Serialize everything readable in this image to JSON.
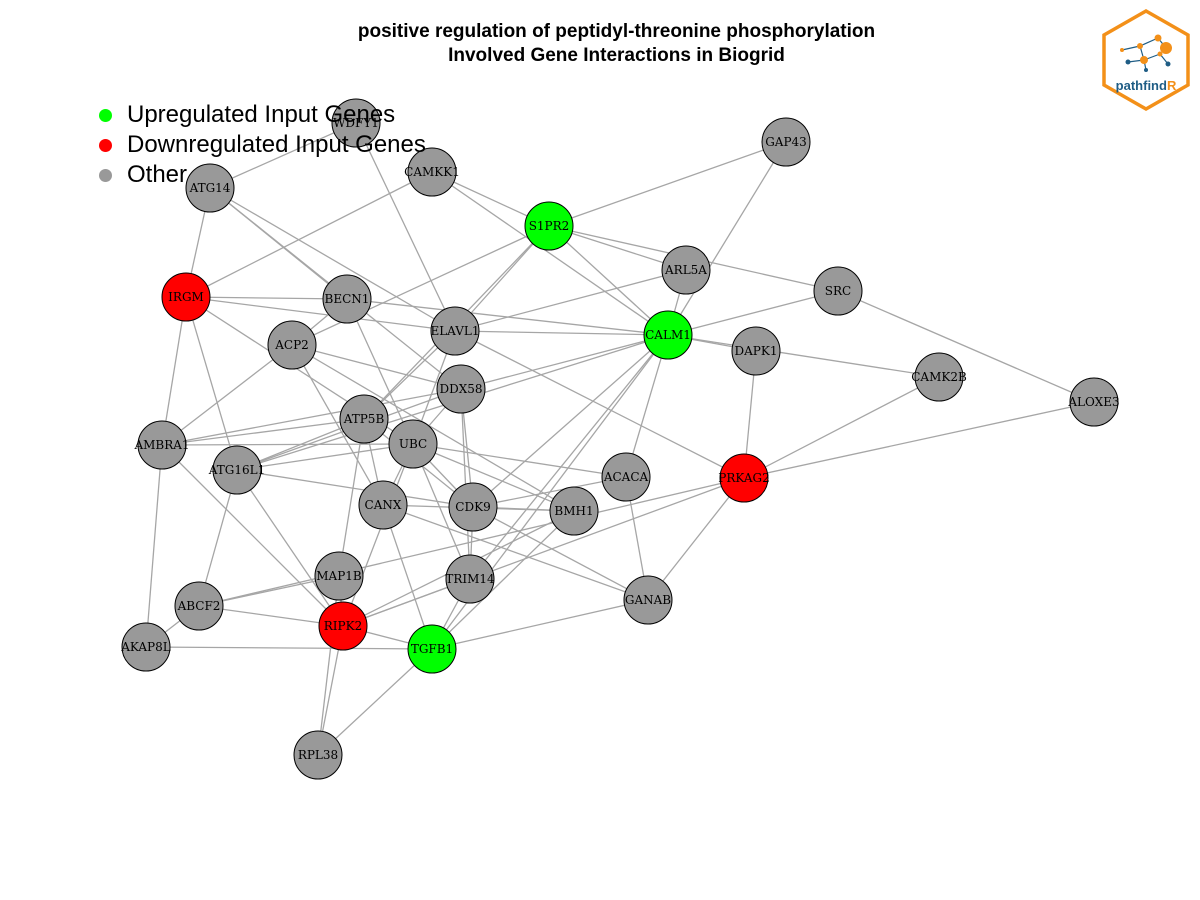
{
  "title": {
    "line1": "positive regulation of peptidyl-threonine phosphorylation",
    "line2": "Involved Gene Interactions in Biogrid"
  },
  "legend": [
    {
      "label": "Upregulated Input Genes",
      "color": "#00ff00"
    },
    {
      "label": "Downregulated Input Genes",
      "color": "#ff0000"
    },
    {
      "label": "Other",
      "color": "#999999"
    }
  ],
  "colors": {
    "up": "#00ff00",
    "down": "#ff0000",
    "other": "#999999",
    "edge": "#a6a6a6"
  },
  "logo": {
    "text_main": "pathfind",
    "text_accent": "R",
    "border_color": "#f39019",
    "accent_color": "#f39019",
    "text_color": "#1f5d85"
  },
  "chart_data": {
    "type": "network",
    "nodes": [
      {
        "id": "WDFY1",
        "status": "other"
      },
      {
        "id": "GAP43",
        "status": "other"
      },
      {
        "id": "CAMKK1",
        "status": "other"
      },
      {
        "id": "ATG14",
        "status": "other"
      },
      {
        "id": "S1PR2",
        "status": "up"
      },
      {
        "id": "ARL5A",
        "status": "other"
      },
      {
        "id": "SRC",
        "status": "other"
      },
      {
        "id": "IRGM",
        "status": "down"
      },
      {
        "id": "BECN1",
        "status": "other"
      },
      {
        "id": "ELAVL1",
        "status": "other"
      },
      {
        "id": "CALM1",
        "status": "up"
      },
      {
        "id": "ACP2",
        "status": "other"
      },
      {
        "id": "DAPK1",
        "status": "other"
      },
      {
        "id": "CAMK2B",
        "status": "other"
      },
      {
        "id": "DDX58",
        "status": "other"
      },
      {
        "id": "ALOXE3",
        "status": "other"
      },
      {
        "id": "ATP5B",
        "status": "other"
      },
      {
        "id": "AMBRA1",
        "status": "other"
      },
      {
        "id": "UBC",
        "status": "other"
      },
      {
        "id": "ATG16L1",
        "status": "other"
      },
      {
        "id": "ACACA",
        "status": "other"
      },
      {
        "id": "PRKAG2",
        "status": "down"
      },
      {
        "id": "CANX",
        "status": "other"
      },
      {
        "id": "CDK9",
        "status": "other"
      },
      {
        "id": "BMH1",
        "status": "other"
      },
      {
        "id": "MAP1B",
        "status": "other"
      },
      {
        "id": "TRIM14",
        "status": "other"
      },
      {
        "id": "ABCF2",
        "status": "other"
      },
      {
        "id": "GANAB",
        "status": "other"
      },
      {
        "id": "RIPK2",
        "status": "down"
      },
      {
        "id": "AKAP8L",
        "status": "other"
      },
      {
        "id": "TGFB1",
        "status": "up"
      },
      {
        "id": "RPL38",
        "status": "other"
      }
    ],
    "edges": [
      [
        "WDFY1",
        "ATG14"
      ],
      [
        "WDFY1",
        "ELAVL1"
      ],
      [
        "CAMKK1",
        "S1PR2"
      ],
      [
        "CAMKK1",
        "CALM1"
      ],
      [
        "CAMKK1",
        "IRGM"
      ],
      [
        "GAP43",
        "S1PR2"
      ],
      [
        "GAP43",
        "CALM1"
      ],
      [
        "ATG14",
        "IRGM"
      ],
      [
        "ATG14",
        "BECN1"
      ],
      [
        "ATG14",
        "DDX58"
      ],
      [
        "ATG14",
        "ELAVL1"
      ],
      [
        "S1PR2",
        "ARL5A"
      ],
      [
        "S1PR2",
        "SRC"
      ],
      [
        "S1PR2",
        "CALM1"
      ],
      [
        "S1PR2",
        "ELAVL1"
      ],
      [
        "S1PR2",
        "ACP2"
      ],
      [
        "S1PR2",
        "ATP5B"
      ],
      [
        "ARL5A",
        "ELAVL1"
      ],
      [
        "ARL5A",
        "CALM1"
      ],
      [
        "SRC",
        "CALM1"
      ],
      [
        "SRC",
        "ALOXE3"
      ],
      [
        "IRGM",
        "BECN1"
      ],
      [
        "IRGM",
        "ELAVL1"
      ],
      [
        "IRGM",
        "AMBRA1"
      ],
      [
        "IRGM",
        "ATG16L1"
      ],
      [
        "IRGM",
        "UBC"
      ],
      [
        "BECN1",
        "ACP2"
      ],
      [
        "BECN1",
        "CALM1"
      ],
      [
        "BECN1",
        "UBC"
      ],
      [
        "ELAVL1",
        "CALM1"
      ],
      [
        "ELAVL1",
        "UBC"
      ],
      [
        "ELAVL1",
        "PRKAG2"
      ],
      [
        "ELAVL1",
        "ATP5B"
      ],
      [
        "CALM1",
        "DAPK1"
      ],
      [
        "CALM1",
        "CAMK2B"
      ],
      [
        "CALM1",
        "DDX58"
      ],
      [
        "CALM1",
        "CDK9"
      ],
      [
        "CALM1",
        "ACACA"
      ],
      [
        "CALM1",
        "ATG16L1"
      ],
      [
        "CALM1",
        "TRIM14"
      ],
      [
        "CALM1",
        "TGFB1"
      ],
      [
        "DAPK1",
        "PRKAG2"
      ],
      [
        "CAMK2B",
        "PRKAG2"
      ],
      [
        "ALOXE3",
        "PRKAG2"
      ],
      [
        "ACP2",
        "AMBRA1"
      ],
      [
        "ACP2",
        "DDX58"
      ],
      [
        "ACP2",
        "CANX"
      ],
      [
        "ACP2",
        "BMH1"
      ],
      [
        "DDX58",
        "AMBRA1"
      ],
      [
        "DDX58",
        "ATG16L1"
      ],
      [
        "DDX58",
        "UBC"
      ],
      [
        "DDX58",
        "CDK9"
      ],
      [
        "DDX58",
        "TRIM14"
      ],
      [
        "ATP5B",
        "AMBRA1"
      ],
      [
        "ATP5B",
        "CANX"
      ],
      [
        "ATP5B",
        "CDK9"
      ],
      [
        "ATP5B",
        "MAP1B"
      ],
      [
        "ATP5B",
        "ATG16L1"
      ],
      [
        "AMBRA1",
        "UBC"
      ],
      [
        "AMBRA1",
        "AKAP8L"
      ],
      [
        "AMBRA1",
        "RIPK2"
      ],
      [
        "UBC",
        "ATG16L1"
      ],
      [
        "UBC",
        "CANX"
      ],
      [
        "UBC",
        "CDK9"
      ],
      [
        "UBC",
        "BMH1"
      ],
      [
        "UBC",
        "ACACA"
      ],
      [
        "UBC",
        "TRIM14"
      ],
      [
        "UBC",
        "RIPK2"
      ],
      [
        "ATG16L1",
        "CDK9"
      ],
      [
        "ATG16L1",
        "ABCF2"
      ],
      [
        "ATG16L1",
        "RIPK2"
      ],
      [
        "CANX",
        "TGFB1"
      ],
      [
        "CANX",
        "GANAB"
      ],
      [
        "CANX",
        "BMH1"
      ],
      [
        "CDK9",
        "BMH1"
      ],
      [
        "CDK9",
        "GANAB"
      ],
      [
        "CDK9",
        "TRIM14"
      ],
      [
        "ACACA",
        "GANAB"
      ],
      [
        "ACACA",
        "CDK9"
      ],
      [
        "PRKAG2",
        "GANAB"
      ],
      [
        "PRKAG2",
        "ABCF2"
      ],
      [
        "PRKAG2",
        "RIPK2"
      ],
      [
        "BMH1",
        "TGFB1"
      ],
      [
        "BMH1",
        "RIPK2"
      ],
      [
        "MAP1B",
        "RIPK2"
      ],
      [
        "MAP1B",
        "ABCF2"
      ],
      [
        "TRIM14",
        "TGFB1"
      ],
      [
        "TRIM14",
        "RIPK2"
      ],
      [
        "ABCF2",
        "RIPK2"
      ],
      [
        "RIPK2",
        "RPL38"
      ],
      [
        "RIPK2",
        "TGFB1"
      ],
      [
        "AKAP8L",
        "TGFB1"
      ],
      [
        "AKAP8L",
        "ABCF2"
      ],
      [
        "TGFB1",
        "RPL38"
      ],
      [
        "TGFB1",
        "GANAB"
      ],
      [
        "MAP1B",
        "RPL38"
      ]
    ]
  }
}
